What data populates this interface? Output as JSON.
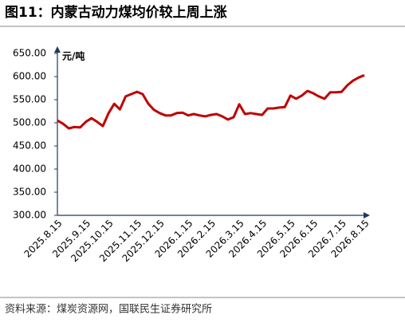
{
  "chart_data": {
    "type": "line",
    "title": "图11：内蒙古动力煤均价较上周上涨",
    "y_label": "元/吨",
    "source": "资料来源：煤炭资源网，国联民生证券研究所",
    "categories": [
      "2025.8.15",
      null,
      null,
      null,
      null,
      "2025.9.15",
      null,
      null,
      null,
      "2025.10.15",
      null,
      null,
      null,
      null,
      "2025.11.15",
      null,
      null,
      null,
      "2025.12.15",
      null,
      null,
      null,
      null,
      "2026.1.15",
      null,
      null,
      null,
      "2026.2.15",
      null,
      null,
      null,
      null,
      "2026.3.15",
      null,
      null,
      null,
      "2026.4.15",
      null,
      null,
      null,
      null,
      "2026.5.15",
      null,
      null,
      null,
      "2026.6.15",
      null,
      null,
      null,
      null,
      "2026.7.15",
      null,
      null,
      null,
      "2026.8.15"
    ],
    "series": [
      {
        "name": "内蒙古动力煤均价",
        "color": "#c00000",
        "values": [
          505,
          498,
          488,
          491,
          490,
          502,
          510,
          502,
          493,
          521,
          541,
          529,
          557,
          562,
          567,
          562,
          541,
          528,
          521,
          516,
          516,
          521,
          522,
          516,
          519,
          516,
          514,
          517,
          519,
          514,
          507,
          512,
          540,
          519,
          521,
          519,
          517,
          531,
          531,
          533,
          534,
          559,
          552,
          559,
          569,
          564,
          557,
          552,
          566,
          566,
          567,
          581,
          591,
          598,
          603
        ]
      }
    ],
    "ylim": [
      300,
      650
    ],
    "yticks": [
      {
        "value": 300,
        "label": "300.00"
      },
      {
        "value": 350,
        "label": "350.00"
      },
      {
        "value": 400,
        "label": "400.00"
      },
      {
        "value": 450,
        "label": "450.00"
      },
      {
        "value": 500,
        "label": "500.00"
      },
      {
        "value": 550,
        "label": "550.00"
      },
      {
        "value": 600,
        "label": "600.00"
      },
      {
        "value": 650,
        "label": "650.00"
      }
    ],
    "grid": false
  }
}
